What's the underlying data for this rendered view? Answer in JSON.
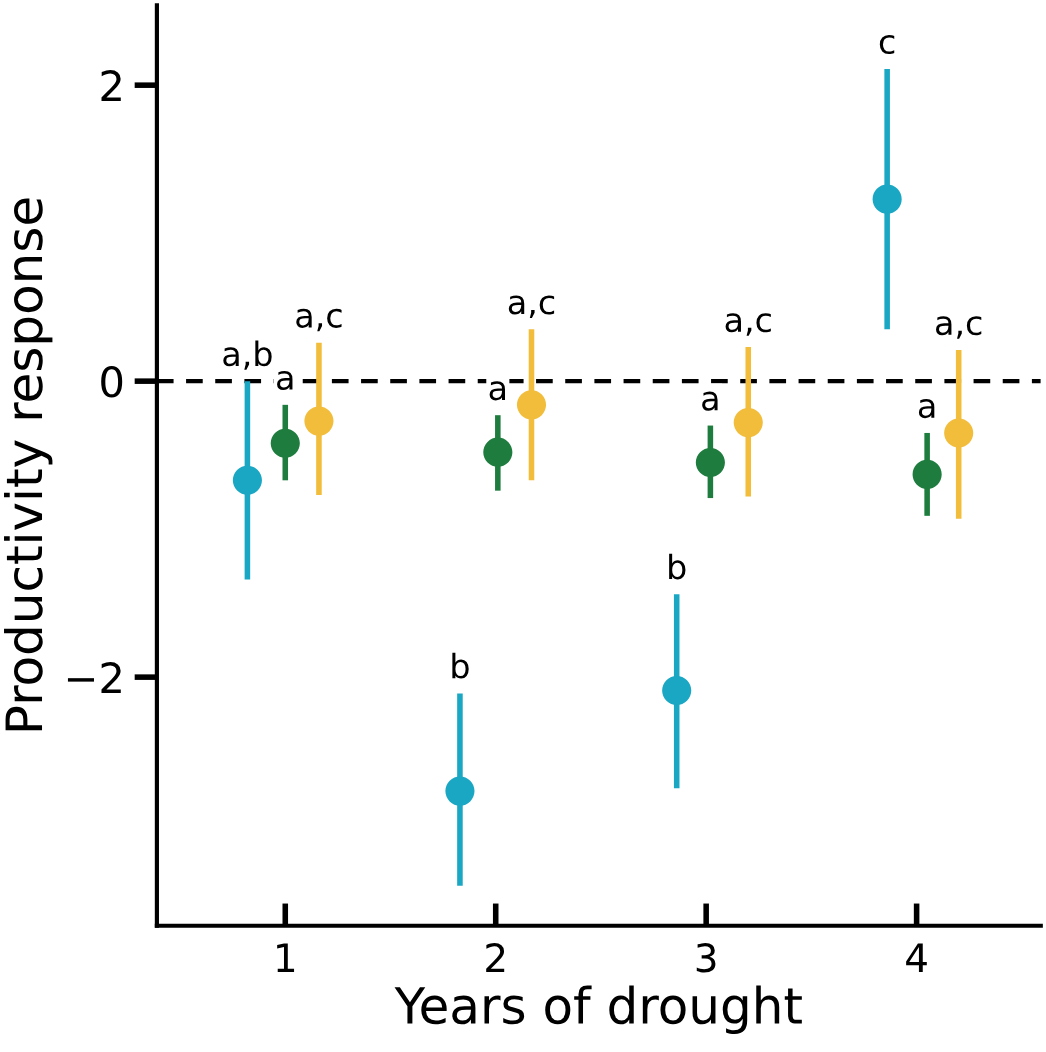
{
  "chart_data": {
    "type": "scatter",
    "xlabel": "Years of drought",
    "ylabel": "Productivity response",
    "xlim": [
      0.39,
      4.59
    ],
    "ylim": [
      -3.68,
      2.54
    ],
    "xticks": [
      1,
      2,
      3,
      4
    ],
    "yticks": [
      {
        "value": -2,
        "label": "−2"
      },
      0,
      2
    ],
    "marker": "circle",
    "grid": false,
    "legend": false,
    "series": [
      {
        "color": "#1aa7c4",
        "x": [
          0.82,
          1.83,
          2.86,
          3.86
        ],
        "values": [
          -0.67,
          -2.77,
          -2.09,
          1.23
        ],
        "errors": [
          [
            -1.34,
            0.0
          ],
          [
            -3.41,
            -2.11
          ],
          [
            -2.75,
            -1.44
          ],
          [
            0.35,
            2.11
          ]
        ]
      },
      {
        "color": "#1e7d3e",
        "x": [
          1.0,
          2.01,
          3.02,
          4.05
        ],
        "values": [
          -0.42,
          -0.48,
          -0.55,
          -0.63
        ],
        "errors": [
          [
            -0.67,
            -0.16
          ],
          [
            -0.74,
            -0.23
          ],
          [
            -0.79,
            -0.3
          ],
          [
            -0.91,
            -0.35
          ]
        ]
      },
      {
        "color": "#f2bd3b",
        "x": [
          1.16,
          2.17,
          3.2,
          4.2
        ],
        "values": [
          -0.27,
          -0.16,
          -0.28,
          -0.35
        ],
        "errors": [
          [
            -0.77,
            0.26
          ],
          [
            -0.67,
            0.35
          ],
          [
            -0.78,
            0.23
          ],
          [
            -0.93,
            0.21
          ]
        ]
      }
    ],
    "ref_lines": [
      {
        "axis": "y",
        "value": 0,
        "color": "#000000",
        "line_style": "dashed"
      }
    ],
    "annotations": [
      {
        "text": "a,b",
        "x": 0.82,
        "y": 0.0
      },
      {
        "text": "b",
        "x": 1.83,
        "y": -2.11
      },
      {
        "text": "b",
        "x": 2.86,
        "y": -1.44
      },
      {
        "text": "c",
        "x": 3.86,
        "y": 2.11
      },
      {
        "text": "a",
        "x": 1.0,
        "y": -0.16
      },
      {
        "text": "a",
        "x": 2.01,
        "y": -0.23
      },
      {
        "text": "a",
        "x": 3.02,
        "y": -0.3
      },
      {
        "text": "a",
        "x": 4.05,
        "y": -0.35
      },
      {
        "text": "a,c",
        "x": 1.16,
        "y": 0.26
      },
      {
        "text": "a,c",
        "x": 2.17,
        "y": 0.35
      },
      {
        "text": "a,c",
        "x": 3.2,
        "y": 0.23
      },
      {
        "text": "a,c",
        "x": 4.2,
        "y": 0.21
      }
    ]
  }
}
